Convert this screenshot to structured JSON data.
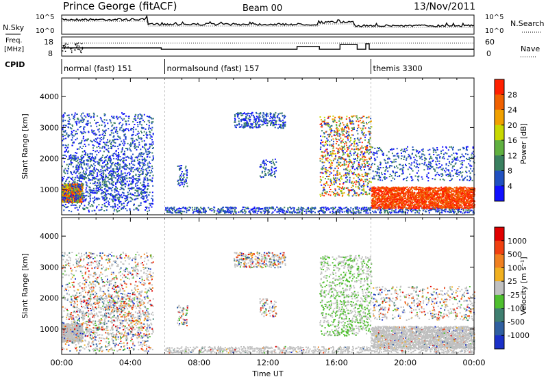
{
  "header": {
    "site": "Prince George (fitACF)",
    "beam": "Beam 00",
    "date": "13/Nov/2011"
  },
  "summary_panel": {
    "nsky_label": "N.Sky",
    "nsearch_label": "N.Search",
    "tick_hi": "10^5",
    "tick_lo": "10^0",
    "freq_label_1": "Freq.",
    "freq_label_2": "[MHz]",
    "freq_tick_hi": "18",
    "freq_tick_lo": "8",
    "nave_label": "Nave",
    "nave_tick_hi": "60",
    "nave_tick_lo": "0",
    "cpid_label": "CPID"
  },
  "cpid_segments": [
    {
      "label": "normal (fast) 151",
      "start_hour": 0
    },
    {
      "label": "normalsound (fast) 157",
      "start_hour": 6
    },
    {
      "label": "themis 3300",
      "start_hour": 18
    }
  ],
  "colors": {
    "power_scale": [
      "#1010ff",
      "#2050c0",
      "#3a8060",
      "#60b040",
      "#c8d800",
      "#f0a000",
      "#f06000",
      "#ff2000"
    ],
    "velocity_scale": [
      "#1a30c8",
      "#2f5fa0",
      "#3f7f70",
      "#4fbf2f",
      "#c0c0c0",
      "#f0b020",
      "#f08020",
      "#f04010",
      "#e00000"
    ],
    "ground_scatter": "#c0c0c0"
  },
  "chart_data": [
    {
      "type": "heatmap",
      "parameter": "Power",
      "ylabel": "Slant Range [km]",
      "xlabel": "Time UT",
      "x_ticks": [
        "00:00",
        "04:00",
        "08:00",
        "12:00",
        "16:00",
        "20:00",
        "00:00"
      ],
      "x_range_hours": [
        0,
        24
      ],
      "y_ticks": [
        1000,
        2000,
        3000,
        4000
      ],
      "y_range": [
        180,
        4600
      ],
      "colorbar_label": "Power [dB]",
      "colorbar_ticks": [
        "4",
        "8",
        "12",
        "16",
        "20",
        "24",
        "28"
      ]
    },
    {
      "type": "heatmap",
      "parameter": "Velocity",
      "ylabel": "Slant Range [km]",
      "xlabel": "Time UT",
      "x_ticks": [
        "00:00",
        "04:00",
        "08:00",
        "12:00",
        "16:00",
        "20:00",
        "00:00"
      ],
      "x_range_hours": [
        0,
        24
      ],
      "y_ticks": [
        1000,
        2000,
        3000,
        4000
      ],
      "y_range": [
        180,
        4600
      ],
      "colorbar_label": "Velocity [m s⁻¹]",
      "colorbar_ticks": [
        "1000",
        "500",
        "100",
        "25",
        "-25",
        "-100",
        "-500",
        "-1000"
      ]
    }
  ]
}
